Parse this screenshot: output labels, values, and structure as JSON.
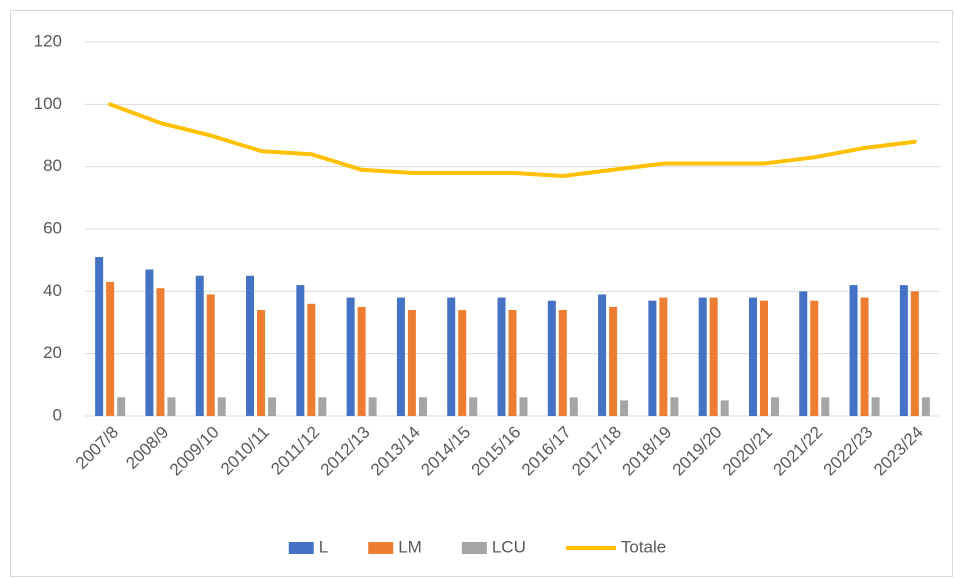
{
  "chart_data": {
    "type": "bar",
    "categories": [
      "2007/8",
      "2008/9",
      "2009/10",
      "2010/11",
      "2011/12",
      "2012/13",
      "2013/14",
      "2014/15",
      "2015/16",
      "2016/17",
      "2017/18",
      "2018/19",
      "2019/20",
      "2020/21",
      "2021/22",
      "2022/23",
      "2023/24"
    ],
    "series": [
      {
        "name": "L",
        "type": "bar",
        "color": "#4472c4",
        "values": [
          51,
          47,
          45,
          45,
          42,
          38,
          38,
          38,
          38,
          37,
          39,
          37,
          38,
          38,
          40,
          42,
          42
        ]
      },
      {
        "name": "LM",
        "type": "bar",
        "color": "#ed7d31",
        "values": [
          43,
          41,
          39,
          34,
          36,
          35,
          34,
          34,
          34,
          34,
          35,
          38,
          38,
          37,
          37,
          38,
          40
        ]
      },
      {
        "name": "LCU",
        "type": "bar",
        "color": "#a5a5a5",
        "values": [
          6,
          6,
          6,
          6,
          6,
          6,
          6,
          6,
          6,
          6,
          5,
          6,
          5,
          6,
          6,
          6,
          6
        ]
      },
      {
        "name": "Totale",
        "type": "line",
        "color": "#ffc000",
        "values": [
          100,
          94,
          90,
          85,
          84,
          79,
          78,
          78,
          78,
          77,
          79,
          81,
          81,
          81,
          83,
          86,
          88
        ]
      }
    ],
    "ylim": [
      0,
      120
    ],
    "yticks": [
      0,
      20,
      40,
      60,
      80,
      100,
      120
    ],
    "grid": true,
    "legend": "bottom"
  }
}
